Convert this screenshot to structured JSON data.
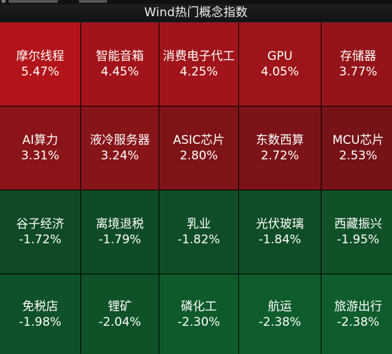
{
  "title": "Wind热门概念指数",
  "tiles": [
    {
      "name": "摩尔线程",
      "change": "5.47%",
      "color": "#b21419"
    },
    {
      "name": "智能音箱",
      "change": "4.45%",
      "color": "#a3141a"
    },
    {
      "name": "消费电子代工",
      "change": "4.25%",
      "color": "#a0141a"
    },
    {
      "name": "GPU",
      "change": "4.05%",
      "color": "#9d1419"
    },
    {
      "name": "存储器",
      "change": "3.77%",
      "color": "#951419"
    },
    {
      "name": "AI算力",
      "change": "3.31%",
      "color": "#8a1419"
    },
    {
      "name": "液冷服务器",
      "change": "3.24%",
      "color": "#871419"
    },
    {
      "name": "ASIC芯片",
      "change": "2.80%",
      "color": "#7e1318"
    },
    {
      "name": "东数西算",
      "change": "2.72%",
      "color": "#7b1318"
    },
    {
      "name": "MCU芯片",
      "change": "2.53%",
      "color": "#761318"
    },
    {
      "name": "谷子经济",
      "change": "-1.72%",
      "color": "#0f4a25"
    },
    {
      "name": "离境退税",
      "change": "-1.79%",
      "color": "#0f4c26"
    },
    {
      "name": "乳业",
      "change": "-1.82%",
      "color": "#0f4d26"
    },
    {
      "name": "光伏玻璃",
      "change": "-1.84%",
      "color": "#0f4d26"
    },
    {
      "name": "西藏振兴",
      "change": "-1.95%",
      "color": "#0f5027"
    },
    {
      "name": "免税店",
      "change": "-1.98%",
      "color": "#0f5128"
    },
    {
      "name": "锂矿",
      "change": "-2.04%",
      "color": "#0f5228"
    },
    {
      "name": "磷化工",
      "change": "-2.30%",
      "color": "#0f5a2b"
    },
    {
      "name": "航运",
      "change": "-2.38%",
      "color": "#0f5c2c"
    },
    {
      "name": "旅游出行",
      "change": "-2.38%",
      "color": "#0f5c2c"
    }
  ]
}
